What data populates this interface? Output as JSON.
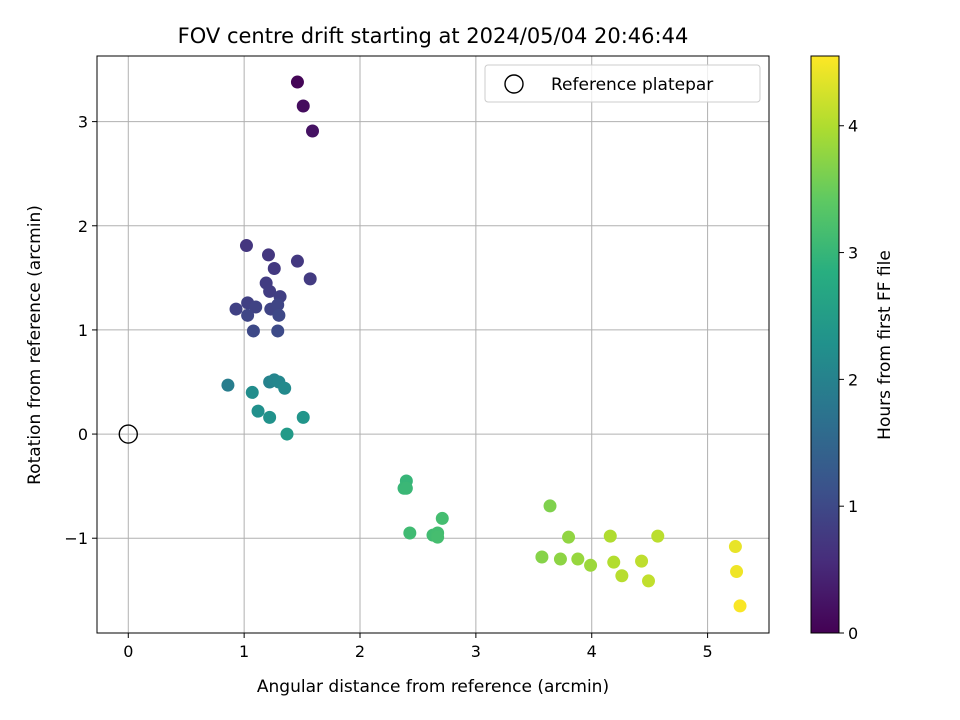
{
  "chart_data": {
    "type": "scatter",
    "title": "FOV centre drift starting at 2024/05/04 20:46:44",
    "xlabel": "Angular distance from reference (arcmin)",
    "ylabel": "Rotation from reference (arcmin)",
    "xlim": [
      -0.27,
      5.53
    ],
    "ylim": [
      -1.91,
      3.63
    ],
    "xticks": [
      0,
      1,
      2,
      3,
      4,
      5
    ],
    "xtick_labels": [
      "0",
      "1",
      "2",
      "3",
      "4",
      "5"
    ],
    "yticks": [
      -1,
      0,
      1,
      2,
      3
    ],
    "ytick_labels": [
      "−1",
      "0",
      "1",
      "2",
      "3"
    ],
    "grid": true,
    "legend": {
      "placement": "top-right",
      "entries": [
        "Reference platepar"
      ]
    },
    "reference_point": {
      "x": 0,
      "y": 0
    },
    "colorbar": {
      "label": "Hours from first FF file",
      "range": [
        0,
        4.55
      ],
      "ticks": [
        0,
        1,
        2,
        3,
        4
      ],
      "tick_labels": [
        "0",
        "1",
        "2",
        "3",
        "4"
      ],
      "colormap": "viridis"
    },
    "points": [
      {
        "x": 1.46,
        "y": 3.38,
        "c": 0.05
      },
      {
        "x": 1.51,
        "y": 3.15,
        "c": 0.15
      },
      {
        "x": 1.59,
        "y": 2.91,
        "c": 0.22
      },
      {
        "x": 1.02,
        "y": 1.81,
        "c": 0.7
      },
      {
        "x": 1.21,
        "y": 1.72,
        "c": 0.72
      },
      {
        "x": 1.46,
        "y": 1.66,
        "c": 0.74
      },
      {
        "x": 1.26,
        "y": 1.59,
        "c": 0.76
      },
      {
        "x": 1.57,
        "y": 1.49,
        "c": 0.78
      },
      {
        "x": 1.19,
        "y": 1.45,
        "c": 0.8
      },
      {
        "x": 1.22,
        "y": 1.37,
        "c": 0.82
      },
      {
        "x": 1.31,
        "y": 1.32,
        "c": 0.84
      },
      {
        "x": 1.03,
        "y": 1.26,
        "c": 0.86
      },
      {
        "x": 0.93,
        "y": 1.2,
        "c": 0.88
      },
      {
        "x": 1.1,
        "y": 1.22,
        "c": 0.9
      },
      {
        "x": 1.23,
        "y": 1.2,
        "c": 0.92
      },
      {
        "x": 1.29,
        "y": 1.24,
        "c": 0.94
      },
      {
        "x": 1.03,
        "y": 1.14,
        "c": 0.96
      },
      {
        "x": 1.3,
        "y": 1.14,
        "c": 0.98
      },
      {
        "x": 1.08,
        "y": 0.99,
        "c": 1.0
      },
      {
        "x": 1.29,
        "y": 0.99,
        "c": 1.02
      },
      {
        "x": 0.86,
        "y": 0.47,
        "c": 1.9
      },
      {
        "x": 1.22,
        "y": 0.5,
        "c": 2.0
      },
      {
        "x": 1.26,
        "y": 0.52,
        "c": 2.05
      },
      {
        "x": 1.3,
        "y": 0.5,
        "c": 2.1
      },
      {
        "x": 1.35,
        "y": 0.44,
        "c": 2.15
      },
      {
        "x": 1.07,
        "y": 0.4,
        "c": 2.2
      },
      {
        "x": 1.12,
        "y": 0.22,
        "c": 2.25
      },
      {
        "x": 1.22,
        "y": 0.16,
        "c": 2.3
      },
      {
        "x": 1.51,
        "y": 0.16,
        "c": 2.35
      },
      {
        "x": 1.37,
        "y": 0.0,
        "c": 2.45
      },
      {
        "x": 2.4,
        "y": -0.45,
        "c": 3.0
      },
      {
        "x": 2.38,
        "y": -0.52,
        "c": 3.02
      },
      {
        "x": 2.4,
        "y": -0.52,
        "c": 3.04
      },
      {
        "x": 2.43,
        "y": -0.95,
        "c": 3.1
      },
      {
        "x": 2.71,
        "y": -0.81,
        "c": 3.15
      },
      {
        "x": 2.63,
        "y": -0.97,
        "c": 3.12
      },
      {
        "x": 2.67,
        "y": -0.95,
        "c": 3.14
      },
      {
        "x": 2.67,
        "y": -0.99,
        "c": 3.16
      },
      {
        "x": 3.64,
        "y": -0.69,
        "c": 3.65
      },
      {
        "x": 3.57,
        "y": -1.18,
        "c": 3.7
      },
      {
        "x": 3.73,
        "y": -1.2,
        "c": 3.75
      },
      {
        "x": 3.8,
        "y": -0.99,
        "c": 3.78
      },
      {
        "x": 3.88,
        "y": -1.2,
        "c": 3.82
      },
      {
        "x": 3.99,
        "y": -1.26,
        "c": 3.86
      },
      {
        "x": 4.16,
        "y": -0.98,
        "c": 4.0
      },
      {
        "x": 4.19,
        "y": -1.23,
        "c": 4.02
      },
      {
        "x": 4.26,
        "y": -1.36,
        "c": 4.05
      },
      {
        "x": 4.43,
        "y": -1.22,
        "c": 4.1
      },
      {
        "x": 4.49,
        "y": -1.41,
        "c": 4.12
      },
      {
        "x": 4.57,
        "y": -0.98,
        "c": 4.08
      },
      {
        "x": 5.24,
        "y": -1.08,
        "c": 4.4
      },
      {
        "x": 5.25,
        "y": -1.32,
        "c": 4.45
      },
      {
        "x": 5.28,
        "y": -1.65,
        "c": 4.52
      }
    ]
  },
  "colors": {
    "grid": "#b0b0b0",
    "axis": "#000000"
  }
}
